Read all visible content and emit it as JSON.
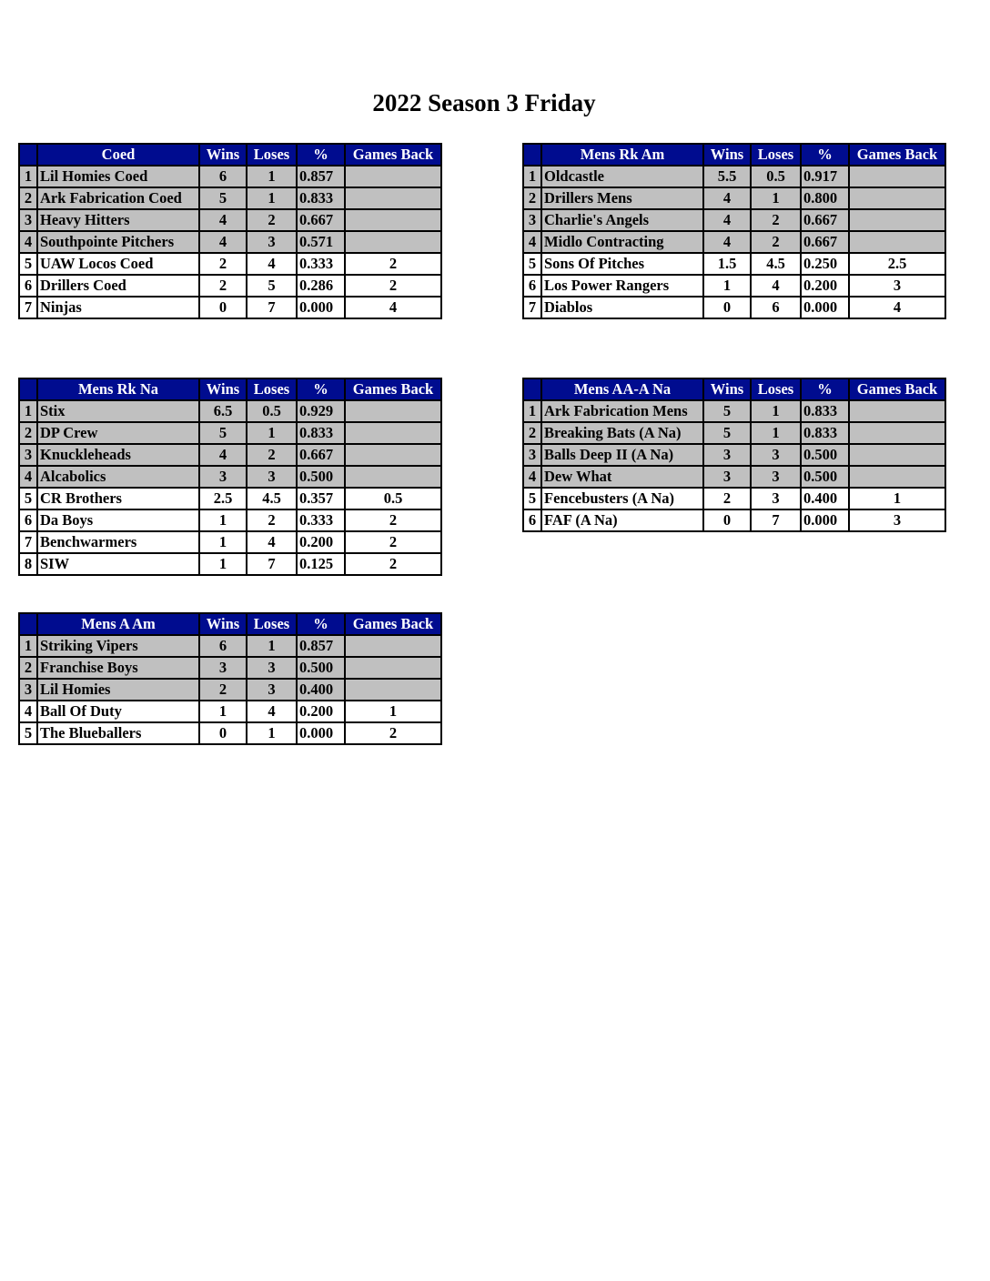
{
  "title": "2022 Season 3 Friday",
  "colors": {
    "header_bg": "#000c8f",
    "header_text": "#ffffff",
    "shaded_row": "#c0c0c0"
  },
  "columns": {
    "wins": "Wins",
    "loses": "Loses",
    "pct": "%",
    "games_back": "Games Back"
  },
  "tables": [
    {
      "division": "Coed",
      "rows": [
        {
          "rank": "1",
          "team": "Lil Homies Coed",
          "wins": "6",
          "loses": "1",
          "pct": "0.857",
          "gb": "",
          "shaded": true
        },
        {
          "rank": "2",
          "team": "Ark Fabrication Coed",
          "wins": "5",
          "loses": "1",
          "pct": "0.833",
          "gb": "",
          "shaded": true
        },
        {
          "rank": "3",
          "team": "Heavy Hitters",
          "wins": "4",
          "loses": "2",
          "pct": "0.667",
          "gb": "",
          "shaded": true
        },
        {
          "rank": "4",
          "team": "Southpointe Pitchers",
          "wins": "4",
          "loses": "3",
          "pct": "0.571",
          "gb": "",
          "shaded": true
        },
        {
          "rank": "5",
          "team": "UAW Locos Coed",
          "wins": "2",
          "loses": "4",
          "pct": "0.333",
          "gb": "2",
          "shaded": false
        },
        {
          "rank": "6",
          "team": "Drillers Coed",
          "wins": "2",
          "loses": "5",
          "pct": "0.286",
          "gb": "2",
          "shaded": false
        },
        {
          "rank": "7",
          "team": "Ninjas",
          "wins": "0",
          "loses": "7",
          "pct": "0.000",
          "gb": "4",
          "shaded": false
        }
      ]
    },
    {
      "division": "Mens Rk Am",
      "rows": [
        {
          "rank": "1",
          "team": "Oldcastle",
          "wins": "5.5",
          "loses": "0.5",
          "pct": "0.917",
          "gb": "",
          "shaded": true
        },
        {
          "rank": "2",
          "team": "Drillers Mens",
          "wins": "4",
          "loses": "1",
          "pct": "0.800",
          "gb": "",
          "shaded": true
        },
        {
          "rank": "3",
          "team": "Charlie's Angels",
          "wins": "4",
          "loses": "2",
          "pct": "0.667",
          "gb": "",
          "shaded": true
        },
        {
          "rank": "4",
          "team": "Midlo Contracting",
          "wins": "4",
          "loses": "2",
          "pct": "0.667",
          "gb": "",
          "shaded": true
        },
        {
          "rank": "5",
          "team": "Sons Of Pitches",
          "wins": "1.5",
          "loses": "4.5",
          "pct": "0.250",
          "gb": "2.5",
          "shaded": false
        },
        {
          "rank": "6",
          "team": "Los Power Rangers",
          "wins": "1",
          "loses": "4",
          "pct": "0.200",
          "gb": "3",
          "shaded": false
        },
        {
          "rank": "7",
          "team": "Diablos",
          "wins": "0",
          "loses": "6",
          "pct": "0.000",
          "gb": "4",
          "shaded": false
        }
      ]
    },
    {
      "division": "Mens Rk Na",
      "rows": [
        {
          "rank": "1",
          "team": "Stix",
          "wins": "6.5",
          "loses": "0.5",
          "pct": "0.929",
          "gb": "",
          "shaded": true
        },
        {
          "rank": "2",
          "team": "DP Crew",
          "wins": "5",
          "loses": "1",
          "pct": "0.833",
          "gb": "",
          "shaded": true
        },
        {
          "rank": "3",
          "team": "Knuckleheads",
          "wins": "4",
          "loses": "2",
          "pct": "0.667",
          "gb": "",
          "shaded": true
        },
        {
          "rank": "4",
          "team": "Alcabolics",
          "wins": "3",
          "loses": "3",
          "pct": "0.500",
          "gb": "",
          "shaded": true
        },
        {
          "rank": "5",
          "team": "CR Brothers",
          "wins": "2.5",
          "loses": "4.5",
          "pct": "0.357",
          "gb": "0.5",
          "shaded": false
        },
        {
          "rank": "6",
          "team": "Da Boys",
          "wins": "1",
          "loses": "2",
          "pct": "0.333",
          "gb": "2",
          "shaded": false
        },
        {
          "rank": "7",
          "team": "Benchwarmers",
          "wins": "1",
          "loses": "4",
          "pct": "0.200",
          "gb": "2",
          "shaded": false
        },
        {
          "rank": "8",
          "team": "SIW",
          "wins": "1",
          "loses": "7",
          "pct": "0.125",
          "gb": "2",
          "shaded": false
        }
      ]
    },
    {
      "division": "Mens AA-A Na",
      "rows": [
        {
          "rank": "1",
          "team": "Ark Fabrication Mens",
          "wins": "5",
          "loses": "1",
          "pct": "0.833",
          "gb": "",
          "shaded": true
        },
        {
          "rank": "2",
          "team": "Breaking Bats (A Na)",
          "wins": "5",
          "loses": "1",
          "pct": "0.833",
          "gb": "",
          "shaded": true
        },
        {
          "rank": "3",
          "team": "Balls Deep II (A Na)",
          "wins": "3",
          "loses": "3",
          "pct": "0.500",
          "gb": "",
          "shaded": true
        },
        {
          "rank": "4",
          "team": "Dew What",
          "wins": "3",
          "loses": "3",
          "pct": "0.500",
          "gb": "",
          "shaded": true
        },
        {
          "rank": "5",
          "team": "Fencebusters (A Na)",
          "wins": "2",
          "loses": "3",
          "pct": "0.400",
          "gb": "1",
          "shaded": false
        },
        {
          "rank": "6",
          "team": "FAF (A Na)",
          "wins": "0",
          "loses": "7",
          "pct": "0.000",
          "gb": "3",
          "shaded": false
        }
      ]
    },
    {
      "division": "Mens A Am",
      "rows": [
        {
          "rank": "1",
          "team": "Striking Vipers",
          "wins": "6",
          "loses": "1",
          "pct": "0.857",
          "gb": "",
          "shaded": true
        },
        {
          "rank": "2",
          "team": "Franchise Boys",
          "wins": "3",
          "loses": "3",
          "pct": "0.500",
          "gb": "",
          "shaded": true
        },
        {
          "rank": "3",
          "team": "Lil Homies",
          "wins": "2",
          "loses": "3",
          "pct": "0.400",
          "gb": "",
          "shaded": true
        },
        {
          "rank": "4",
          "team": "Ball Of Duty",
          "wins": "1",
          "loses": "4",
          "pct": "0.200",
          "gb": "1",
          "shaded": false
        },
        {
          "rank": "5",
          "team": "The Blueballers",
          "wins": "0",
          "loses": "1",
          "pct": "0.000",
          "gb": "2",
          "shaded": false
        }
      ]
    }
  ]
}
